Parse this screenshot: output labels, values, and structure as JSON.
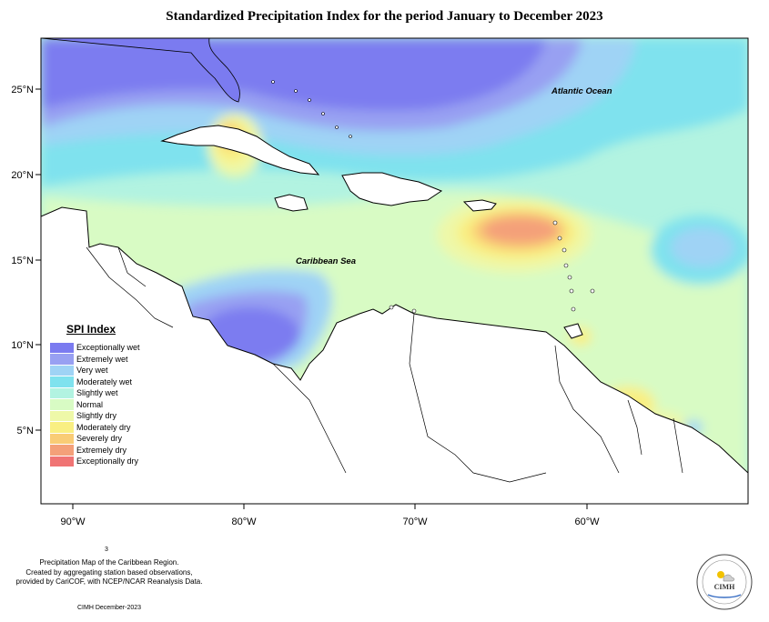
{
  "title": "Standardized Precipitation Index for the period January to December 2023",
  "axes": {
    "longitude_ticks": [
      "90°W",
      "80°W",
      "70°W",
      "60°W"
    ],
    "latitude_ticks": [
      "25°N",
      "20°N",
      "15°N",
      "10°N",
      "5°N"
    ]
  },
  "map_labels": {
    "atlantic": "Atlantic Ocean",
    "caribbean": "Caribbean Sea"
  },
  "legend": {
    "title": "SPI Index",
    "items": [
      {
        "label": "Exceptionally wet",
        "color": "#7b7bf0"
      },
      {
        "label": "Extremely wet",
        "color": "#98a0f2"
      },
      {
        "label": "Very wet",
        "color": "#9fd3f5"
      },
      {
        "label": "Moderately wet",
        "color": "#7fe2ee"
      },
      {
        "label": "Slightly wet",
        "color": "#b2f3e1"
      },
      {
        "label": "Normal",
        "color": "#d8fbc4"
      },
      {
        "label": "Slightly dry",
        "color": "#eef8a8"
      },
      {
        "label": "Moderately dry",
        "color": "#f9ef82"
      },
      {
        "label": "Severely dry",
        "color": "#f9cc76"
      },
      {
        "label": "Extremely dry",
        "color": "#f4a079"
      },
      {
        "label": "Exceptionally dry",
        "color": "#f07474"
      }
    ]
  },
  "footer": {
    "line1": "Precipitation Map of the Caribbean Region.",
    "line2": "Created by aggregating station based observations,",
    "line3": "provided by CariCOF, with NCEP/NCAR Reanalysis Data.",
    "credit": "CIMH December-2023",
    "mark": "3"
  },
  "logo": {
    "text": "CIMH"
  }
}
